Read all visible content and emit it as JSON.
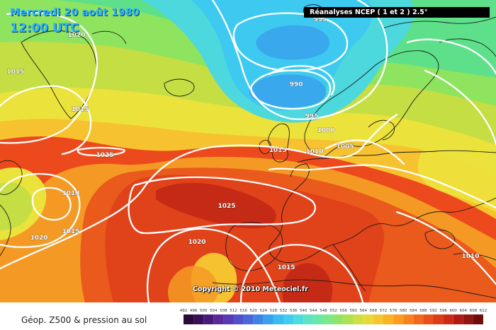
{
  "header": {
    "date": "Mercredi 20 août 1980",
    "time": "12:00 UTC",
    "source": "Réanalyses NCEP ( 1 et 2 ) 2.5°"
  },
  "footer": {
    "copyright": "Copyright © 2010 Meteociel.fr",
    "legend_title": "Géop. Z500 & pression au sol"
  },
  "legend": {
    "ticks": [
      "492",
      "496",
      "500",
      "504",
      "508",
      "512",
      "516",
      "520",
      "524",
      "528",
      "532",
      "536",
      "540",
      "544",
      "548",
      "552",
      "556",
      "560",
      "564",
      "568",
      "572",
      "576",
      "580",
      "584",
      "588",
      "592",
      "596",
      "600",
      "604",
      "608",
      "612"
    ],
    "colors": [
      "#2a0a3a",
      "#3a0f5a",
      "#4a1a7a",
      "#5a2a9a",
      "#5a3ab4",
      "#5050c8",
      "#4a66d8",
      "#3d84e6",
      "#3aa0f0",
      "#3cbaf2",
      "#40ccee",
      "#4fdadd",
      "#5ce4c4",
      "#6ae8a6",
      "#7ce886",
      "#92e468",
      "#aee052",
      "#cde042",
      "#ead83a",
      "#f6c62e",
      "#fab226",
      "#fb9c20",
      "#f7821e",
      "#f1681c",
      "#e8521a",
      "#dd3c18",
      "#cc2a16",
      "#b01c14",
      "#901410",
      "#700c0c"
    ]
  },
  "isobars": [
    {
      "label": "995"
    },
    {
      "label": "1020"
    },
    {
      "label": "1015"
    },
    {
      "label": "990"
    },
    {
      "label": "995"
    },
    {
      "label": "1015"
    },
    {
      "label": "1000"
    },
    {
      "label": "1025"
    },
    {
      "label": "1015"
    },
    {
      "label": "1010"
    },
    {
      "label": "1005"
    },
    {
      "label": "1010"
    },
    {
      "label": "1025"
    },
    {
      "label": "1020"
    },
    {
      "label": "1015"
    },
    {
      "label": "1020"
    },
    {
      "label": "1015"
    },
    {
      "label": "1010"
    }
  ]
}
